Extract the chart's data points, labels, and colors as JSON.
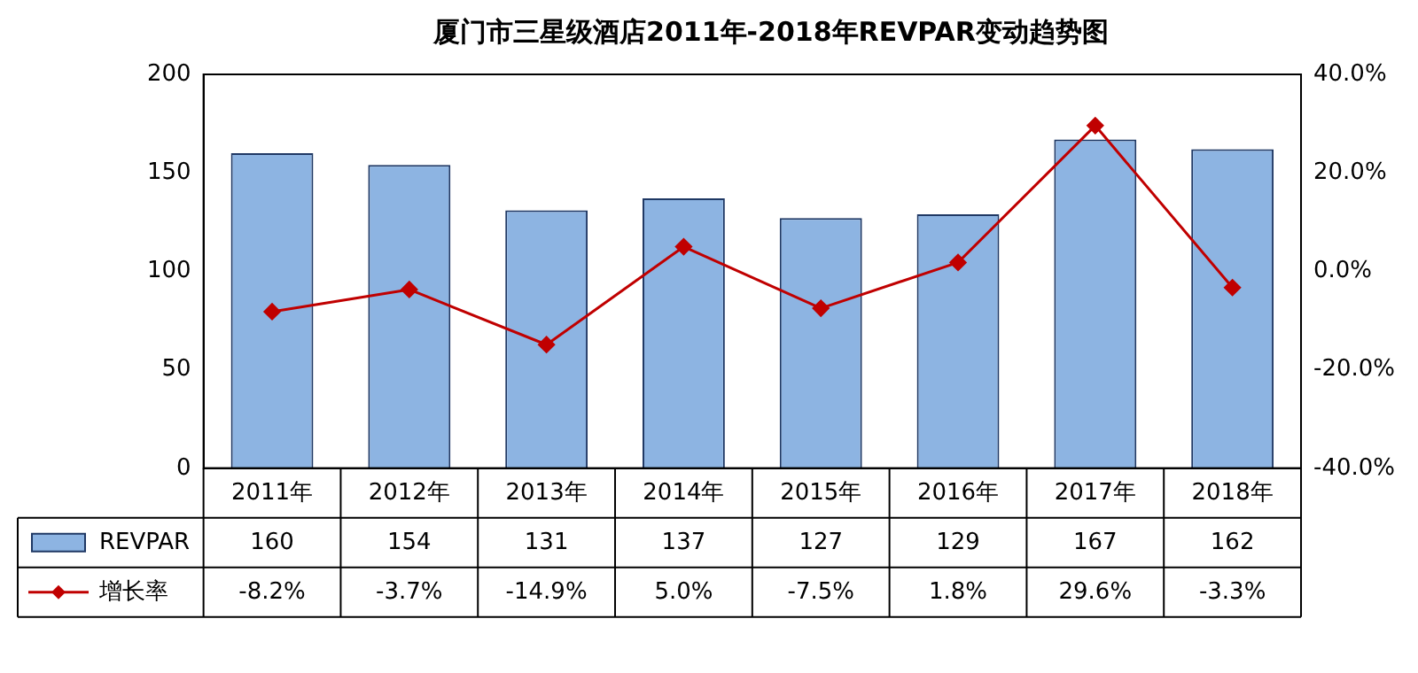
{
  "chart_data": {
    "type": "bar",
    "title": "厦门市三星级酒店2011年-2018年REVPAR变动趋势图",
    "categories": [
      "2011年",
      "2012年",
      "2013年",
      "2014年",
      "2015年",
      "2016年",
      "2017年",
      "2018年"
    ],
    "series": [
      {
        "name": "REVPAR",
        "color": "#8db4e2",
        "values": [
          160,
          154,
          131,
          137,
          127,
          129,
          167,
          162
        ],
        "value_labels": [
          "160",
          "154",
          "131",
          "137",
          "127",
          "129",
          "167",
          "162"
        ]
      },
      {
        "name": "增长率",
        "type": "line",
        "axis": "y2",
        "color": "#c00000",
        "values": [
          -8.2,
          -3.7,
          -14.9,
          5.0,
          -7.5,
          1.8,
          29.6,
          -3.3
        ],
        "value_labels": [
          "-8.2%",
          "-3.7%",
          "-14.9%",
          "5.0%",
          "-7.5%",
          "1.8%",
          "29.6%",
          "-3.3%"
        ]
      }
    ],
    "ylim": [
      0,
      200
    ],
    "yticks": [
      0,
      50,
      100,
      150,
      200
    ],
    "y2lim": [
      -40,
      40
    ],
    "y2ticks": [
      {
        "value": -40,
        "label": "-40.0%"
      },
      {
        "value": -20,
        "label": "-20.0%"
      },
      {
        "value": 0,
        "label": "0.0%"
      },
      {
        "value": 20,
        "label": "20.0%"
      },
      {
        "value": 40,
        "label": "40.0%"
      }
    ],
    "legend": "bottom",
    "marker": "diamond",
    "grid": false
  }
}
